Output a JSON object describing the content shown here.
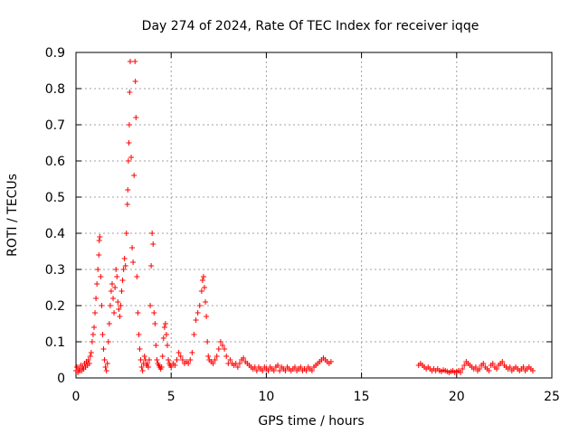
{
  "chart_data": {
    "type": "scatter",
    "title": "Day 274 of 2024, Rate Of TEC Index for receiver iqqe",
    "xlabel": "GPS time / hours",
    "ylabel": "ROTI / TECUs",
    "xlim": [
      0,
      25
    ],
    "ylim": [
      0,
      0.9
    ],
    "xticks": [
      "0",
      "5",
      "10",
      "15",
      "20",
      "25"
    ],
    "yticks": [
      "0",
      "0.1",
      "0.2",
      "0.3",
      "0.4",
      "0.5",
      "0.6",
      "0.7",
      "0.8",
      "0.9"
    ],
    "grid": true,
    "marker": "+",
    "color": "#ff0000",
    "series": [
      {
        "points": [
          [
            0.0,
            0.02
          ],
          [
            0.05,
            0.03
          ],
          [
            0.1,
            0.015
          ],
          [
            0.15,
            0.025
          ],
          [
            0.2,
            0.02
          ],
          [
            0.25,
            0.035
          ],
          [
            0.3,
            0.02
          ],
          [
            0.35,
            0.03
          ],
          [
            0.4,
            0.025
          ],
          [
            0.45,
            0.04
          ],
          [
            0.5,
            0.03
          ],
          [
            0.55,
            0.045
          ],
          [
            0.6,
            0.035
          ],
          [
            0.65,
            0.05
          ],
          [
            0.7,
            0.04
          ],
          [
            0.75,
            0.06
          ],
          [
            0.8,
            0.07
          ],
          [
            0.85,
            0.1
          ],
          [
            0.9,
            0.12
          ],
          [
            0.95,
            0.14
          ],
          [
            1.0,
            0.18
          ],
          [
            1.05,
            0.22
          ],
          [
            1.1,
            0.26
          ],
          [
            1.15,
            0.3
          ],
          [
            1.2,
            0.34
          ],
          [
            1.22,
            0.38
          ],
          [
            1.25,
            0.39
          ],
          [
            1.3,
            0.28
          ],
          [
            1.35,
            0.2
          ],
          [
            1.4,
            0.12
          ],
          [
            1.45,
            0.08
          ],
          [
            1.5,
            0.05
          ],
          [
            1.55,
            0.03
          ],
          [
            1.6,
            0.02
          ],
          [
            1.65,
            0.04
          ],
          [
            1.7,
            0.1
          ],
          [
            1.75,
            0.15
          ],
          [
            1.8,
            0.2
          ],
          [
            1.85,
            0.24
          ],
          [
            1.9,
            0.26
          ],
          [
            1.95,
            0.22
          ],
          [
            2.0,
            0.18
          ],
          [
            2.05,
            0.25
          ],
          [
            2.1,
            0.3
          ],
          [
            2.15,
            0.28
          ],
          [
            2.2,
            0.21
          ],
          [
            2.25,
            0.19
          ],
          [
            2.3,
            0.17
          ],
          [
            2.35,
            0.2
          ],
          [
            2.4,
            0.24
          ],
          [
            2.45,
            0.27
          ],
          [
            2.5,
            0.3
          ],
          [
            2.55,
            0.33
          ],
          [
            2.6,
            0.31
          ],
          [
            2.65,
            0.4
          ],
          [
            2.7,
            0.48
          ],
          [
            2.72,
            0.52
          ],
          [
            2.75,
            0.6
          ],
          [
            2.78,
            0.65
          ],
          [
            2.8,
            0.7
          ],
          [
            2.82,
            0.79
          ],
          [
            2.85,
            0.875
          ],
          [
            2.9,
            0.61
          ],
          [
            2.95,
            0.36
          ],
          [
            3.0,
            0.32
          ],
          [
            3.05,
            0.56
          ],
          [
            3.1,
            0.875
          ],
          [
            3.12,
            0.82
          ],
          [
            3.15,
            0.72
          ],
          [
            3.2,
            0.28
          ],
          [
            3.25,
            0.18
          ],
          [
            3.3,
            0.12
          ],
          [
            3.35,
            0.08
          ],
          [
            3.4,
            0.05
          ],
          [
            3.45,
            0.03
          ],
          [
            3.5,
            0.02
          ],
          [
            3.55,
            0.04
          ],
          [
            3.6,
            0.06
          ],
          [
            3.65,
            0.05
          ],
          [
            3.7,
            0.035
          ],
          [
            3.75,
            0.04
          ],
          [
            3.8,
            0.03
          ],
          [
            3.85,
            0.05
          ],
          [
            3.9,
            0.2
          ],
          [
            3.95,
            0.31
          ],
          [
            4.0,
            0.4
          ],
          [
            4.05,
            0.37
          ],
          [
            4.1,
            0.18
          ],
          [
            4.15,
            0.15
          ],
          [
            4.2,
            0.09
          ],
          [
            4.25,
            0.05
          ],
          [
            4.3,
            0.04
          ],
          [
            4.35,
            0.035
          ],
          [
            4.4,
            0.03
          ],
          [
            4.45,
            0.025
          ],
          [
            4.5,
            0.03
          ],
          [
            4.55,
            0.06
          ],
          [
            4.6,
            0.11
          ],
          [
            4.65,
            0.14
          ],
          [
            4.7,
            0.15
          ],
          [
            4.75,
            0.12
          ],
          [
            4.8,
            0.09
          ],
          [
            4.85,
            0.05
          ],
          [
            4.9,
            0.04
          ],
          [
            4.95,
            0.035
          ],
          [
            5.0,
            0.03
          ],
          [
            5.1,
            0.04
          ],
          [
            5.2,
            0.035
          ],
          [
            5.3,
            0.05
          ],
          [
            5.4,
            0.07
          ],
          [
            5.5,
            0.06
          ],
          [
            5.6,
            0.05
          ],
          [
            5.7,
            0.04
          ],
          [
            5.8,
            0.045
          ],
          [
            5.9,
            0.04
          ],
          [
            6.0,
            0.05
          ],
          [
            6.1,
            0.07
          ],
          [
            6.2,
            0.12
          ],
          [
            6.3,
            0.16
          ],
          [
            6.4,
            0.18
          ],
          [
            6.5,
            0.2
          ],
          [
            6.6,
            0.24
          ],
          [
            6.65,
            0.27
          ],
          [
            6.7,
            0.28
          ],
          [
            6.75,
            0.25
          ],
          [
            6.8,
            0.21
          ],
          [
            6.85,
            0.17
          ],
          [
            6.9,
            0.1
          ],
          [
            6.95,
            0.06
          ],
          [
            7.0,
            0.05
          ],
          [
            7.1,
            0.045
          ],
          [
            7.2,
            0.04
          ],
          [
            7.3,
            0.05
          ],
          [
            7.4,
            0.06
          ],
          [
            7.5,
            0.08
          ],
          [
            7.6,
            0.1
          ],
          [
            7.7,
            0.09
          ],
          [
            7.8,
            0.08
          ],
          [
            7.9,
            0.06
          ],
          [
            8.0,
            0.04
          ],
          [
            8.1,
            0.05
          ],
          [
            8.2,
            0.04
          ],
          [
            8.3,
            0.035
          ],
          [
            8.4,
            0.04
          ],
          [
            8.5,
            0.03
          ],
          [
            8.6,
            0.04
          ],
          [
            8.7,
            0.05
          ],
          [
            8.8,
            0.055
          ],
          [
            8.9,
            0.045
          ],
          [
            9.0,
            0.04
          ],
          [
            9.1,
            0.035
          ],
          [
            9.2,
            0.03
          ],
          [
            9.3,
            0.025
          ],
          [
            9.4,
            0.03
          ],
          [
            9.5,
            0.02
          ],
          [
            9.6,
            0.03
          ],
          [
            9.7,
            0.025
          ],
          [
            9.8,
            0.02
          ],
          [
            9.9,
            0.03
          ],
          [
            10.0,
            0.025
          ],
          [
            10.1,
            0.02
          ],
          [
            10.2,
            0.03
          ],
          [
            10.3,
            0.025
          ],
          [
            10.4,
            0.02
          ],
          [
            10.5,
            0.03
          ],
          [
            10.6,
            0.035
          ],
          [
            10.7,
            0.02
          ],
          [
            10.8,
            0.03
          ],
          [
            10.9,
            0.025
          ],
          [
            11.0,
            0.02
          ],
          [
            11.1,
            0.03
          ],
          [
            11.2,
            0.025
          ],
          [
            11.3,
            0.02
          ],
          [
            11.4,
            0.025
          ],
          [
            11.5,
            0.03
          ],
          [
            11.6,
            0.02
          ],
          [
            11.7,
            0.025
          ],
          [
            11.8,
            0.03
          ],
          [
            11.9,
            0.02
          ],
          [
            12.0,
            0.025
          ],
          [
            12.1,
            0.02
          ],
          [
            12.2,
            0.03
          ],
          [
            12.3,
            0.025
          ],
          [
            12.4,
            0.02
          ],
          [
            12.5,
            0.03
          ],
          [
            12.6,
            0.035
          ],
          [
            12.7,
            0.04
          ],
          [
            12.8,
            0.045
          ],
          [
            12.9,
            0.05
          ],
          [
            13.0,
            0.055
          ],
          [
            13.1,
            0.05
          ],
          [
            13.2,
            0.045
          ],
          [
            13.3,
            0.04
          ],
          [
            13.4,
            0.045
          ],
          [
            18.0,
            0.035
          ],
          [
            18.1,
            0.04
          ],
          [
            18.2,
            0.035
          ],
          [
            18.3,
            0.03
          ],
          [
            18.4,
            0.025
          ],
          [
            18.5,
            0.03
          ],
          [
            18.6,
            0.025
          ],
          [
            18.7,
            0.02
          ],
          [
            18.8,
            0.025
          ],
          [
            18.9,
            0.02
          ],
          [
            19.0,
            0.025
          ],
          [
            19.1,
            0.02
          ],
          [
            19.2,
            0.018
          ],
          [
            19.3,
            0.022
          ],
          [
            19.4,
            0.02
          ],
          [
            19.5,
            0.018
          ],
          [
            19.6,
            0.015
          ],
          [
            19.7,
            0.018
          ],
          [
            19.8,
            0.02
          ],
          [
            19.9,
            0.015
          ],
          [
            20.0,
            0.018
          ],
          [
            20.1,
            0.02
          ],
          [
            20.2,
            0.015
          ],
          [
            20.3,
            0.025
          ],
          [
            20.4,
            0.035
          ],
          [
            20.5,
            0.045
          ],
          [
            20.6,
            0.04
          ],
          [
            20.7,
            0.035
          ],
          [
            20.8,
            0.03
          ],
          [
            20.9,
            0.025
          ],
          [
            21.0,
            0.03
          ],
          [
            21.1,
            0.02
          ],
          [
            21.2,
            0.025
          ],
          [
            21.3,
            0.035
          ],
          [
            21.4,
            0.04
          ],
          [
            21.5,
            0.03
          ],
          [
            21.6,
            0.025
          ],
          [
            21.7,
            0.02
          ],
          [
            21.8,
            0.035
          ],
          [
            21.9,
            0.04
          ],
          [
            22.0,
            0.03
          ],
          [
            22.1,
            0.025
          ],
          [
            22.2,
            0.035
          ],
          [
            22.3,
            0.04
          ],
          [
            22.4,
            0.045
          ],
          [
            22.5,
            0.035
          ],
          [
            22.6,
            0.03
          ],
          [
            22.7,
            0.025
          ],
          [
            22.8,
            0.03
          ],
          [
            22.9,
            0.02
          ],
          [
            23.0,
            0.025
          ],
          [
            23.1,
            0.03
          ],
          [
            23.2,
            0.025
          ],
          [
            23.3,
            0.02
          ],
          [
            23.4,
            0.025
          ],
          [
            23.5,
            0.03
          ],
          [
            23.6,
            0.02
          ],
          [
            23.7,
            0.025
          ],
          [
            23.8,
            0.03
          ],
          [
            23.9,
            0.025
          ],
          [
            24.0,
            0.02
          ]
        ]
      }
    ]
  }
}
